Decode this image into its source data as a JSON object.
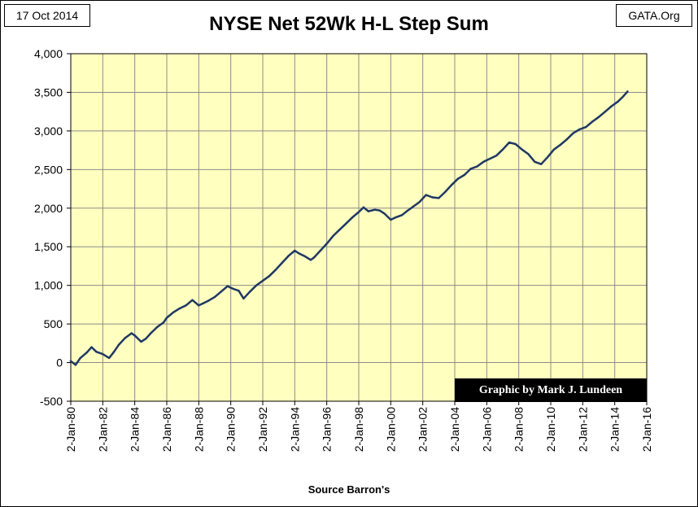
{
  "header": {
    "date": "17 Oct 2014",
    "source_site": "GATA.Org"
  },
  "credit": "Graphic by Mark J. Lundeen",
  "chart_data": {
    "type": "line",
    "title": "NYSE Net 52Wk H-L Step Sum",
    "xlabel": "Source Barron's",
    "ylabel": "",
    "ylim": [
      -500,
      4000
    ],
    "xlim": [
      1980,
      2016
    ],
    "grid": true,
    "legend": "none",
    "plot_background": "#ffffc0",
    "line_color": "#1f3864",
    "y_ticks": [
      "-500",
      "0",
      "500",
      "1,000",
      "1,500",
      "2,000",
      "2,500",
      "3,000",
      "3,500",
      "4,000"
    ],
    "y_tick_values": [
      -500,
      0,
      500,
      1000,
      1500,
      2000,
      2500,
      3000,
      3500,
      4000
    ],
    "x_ticks": [
      "2-Jan-80",
      "2-Jan-82",
      "2-Jan-84",
      "2-Jan-86",
      "2-Jan-88",
      "2-Jan-90",
      "2-Jan-92",
      "2-Jan-94",
      "2-Jan-96",
      "2-Jan-98",
      "2-Jan-00",
      "2-Jan-02",
      "2-Jan-04",
      "2-Jan-06",
      "2-Jan-08",
      "2-Jan-10",
      "2-Jan-12",
      "2-Jan-14",
      "2-Jan-16"
    ],
    "x_tick_values": [
      1980,
      1982,
      1984,
      1986,
      1988,
      1990,
      1992,
      1994,
      1996,
      1998,
      2000,
      2002,
      2004,
      2006,
      2008,
      2010,
      2012,
      2014,
      2016
    ],
    "series": [
      {
        "x": [
          1980.0,
          1980.3,
          1980.6,
          1981.0,
          1981.3,
          1981.6,
          1982.0,
          1982.4,
          1982.7,
          1983.0,
          1983.4,
          1983.8,
          1984.0,
          1984.4,
          1984.7,
          1985.0,
          1985.4,
          1985.8,
          1986.0,
          1986.4,
          1986.8,
          1987.2,
          1987.6,
          1988.0,
          1988.3,
          1988.6,
          1989.0,
          1989.4,
          1989.8,
          1990.1,
          1990.5,
          1990.8,
          1991.2,
          1991.6,
          1992.0,
          1992.4,
          1992.8,
          1993.2,
          1993.6,
          1994.0,
          1994.3,
          1994.6,
          1995.0,
          1995.2,
          1995.6,
          1996.0,
          1996.4,
          1996.8,
          1997.2,
          1997.6,
          1998.0,
          1998.3,
          1998.6,
          1999.0,
          1999.3,
          1999.6,
          2000.0,
          2000.3,
          2000.7,
          2001.0,
          2001.4,
          2001.8,
          2002.2,
          2002.6,
          2003.0,
          2003.4,
          2003.8,
          2004.2,
          2004.6,
          2005.0,
          2005.4,
          2005.8,
          2006.2,
          2006.6,
          2007.0,
          2007.4,
          2007.8,
          2008.2,
          2008.6,
          2009.0,
          2009.4,
          2009.8,
          2010.2,
          2010.6,
          2011.0,
          2011.4,
          2011.8,
          2012.2,
          2012.6,
          2013.0,
          2013.4,
          2013.8,
          2014.2,
          2014.5,
          2014.8
        ],
        "values": [
          20,
          -30,
          60,
          130,
          200,
          140,
          110,
          60,
          140,
          230,
          320,
          380,
          350,
          270,
          310,
          380,
          460,
          520,
          580,
          650,
          700,
          740,
          810,
          740,
          770,
          800,
          850,
          920,
          990,
          960,
          930,
          830,
          920,
          1000,
          1060,
          1120,
          1200,
          1290,
          1380,
          1450,
          1410,
          1380,
          1330,
          1360,
          1450,
          1540,
          1640,
          1720,
          1800,
          1880,
          1950,
          2010,
          1960,
          1980,
          1970,
          1930,
          1850,
          1880,
          1910,
          1960,
          2020,
          2080,
          2170,
          2140,
          2130,
          2210,
          2300,
          2380,
          2430,
          2510,
          2540,
          2600,
          2640,
          2680,
          2760,
          2850,
          2830,
          2760,
          2700,
          2600,
          2570,
          2660,
          2760,
          2820,
          2890,
          2970,
          3020,
          3050,
          3120,
          3180,
          3250,
          3320,
          3380,
          3440,
          3510
        ]
      }
    ]
  }
}
